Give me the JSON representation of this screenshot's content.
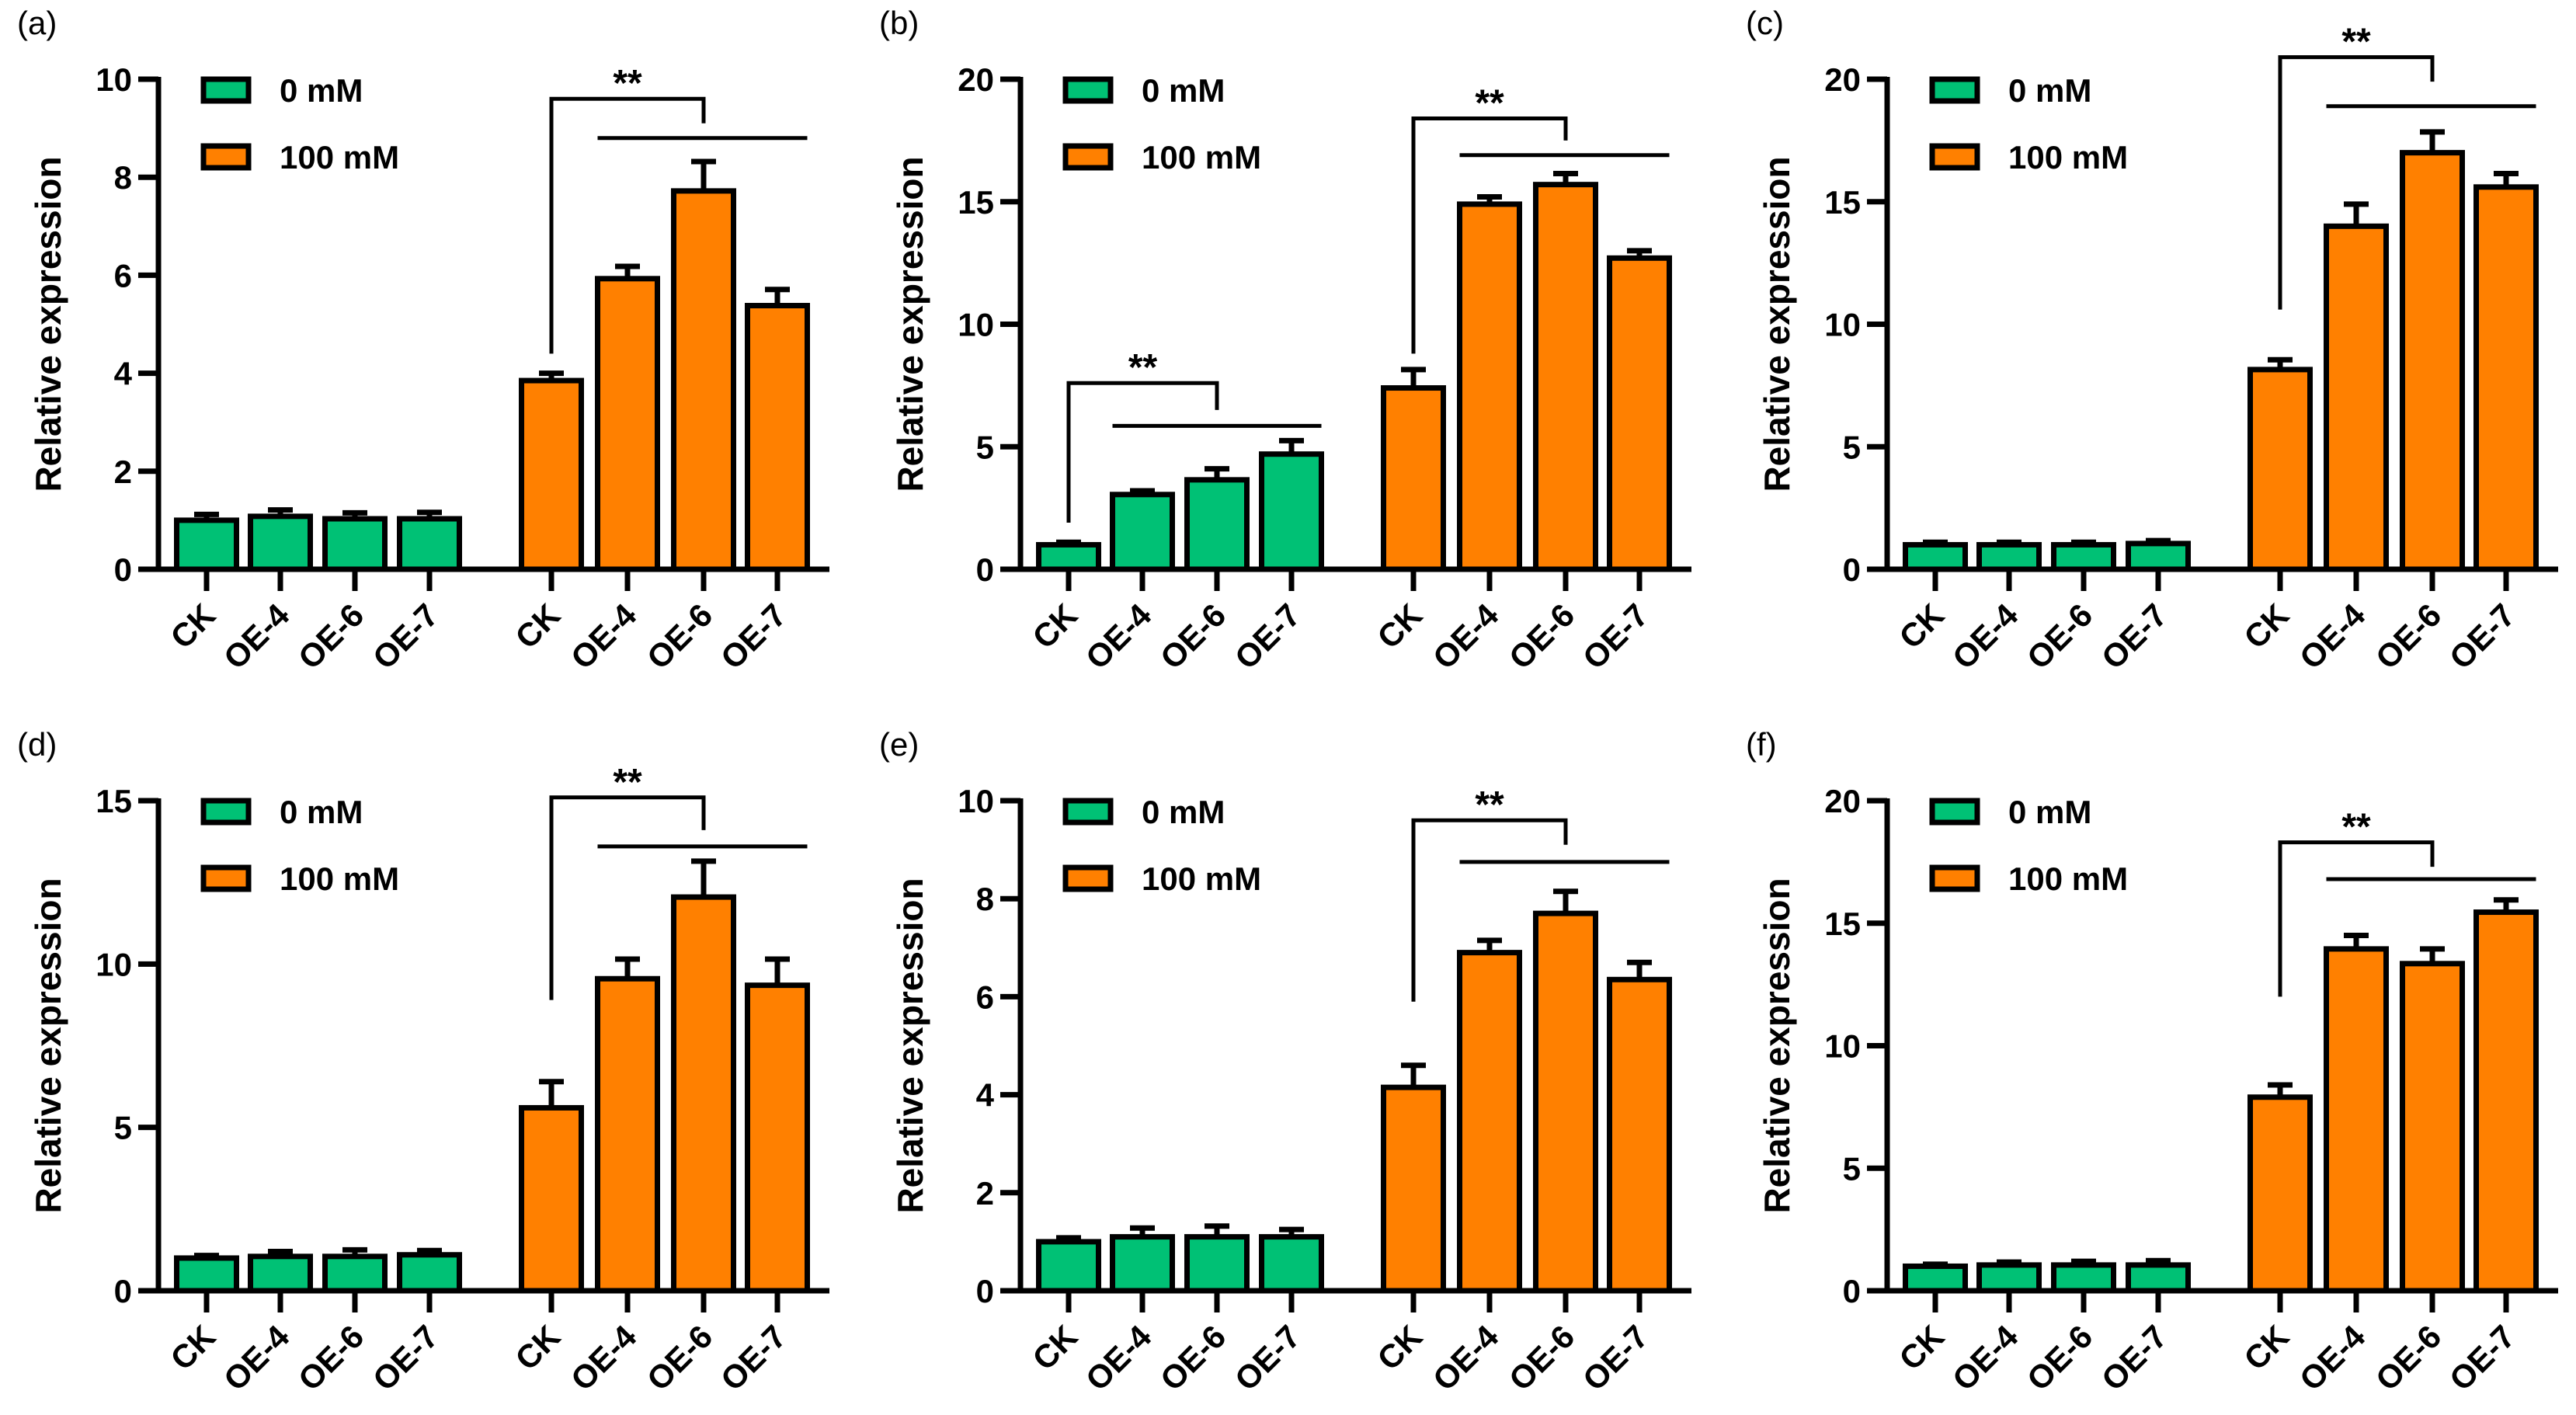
{
  "colors": {
    "0 mM": "#00c175",
    "100 mM": "#ff8000",
    "axis": "#000000"
  },
  "chart_data": [
    {
      "panel": "(a)",
      "type": "bar",
      "ylabel": "Relative expression",
      "ylim": [
        0,
        10
      ],
      "yticks": [
        "0",
        "2",
        "4",
        "6",
        "8",
        "10"
      ],
      "legend": [
        "0 mM",
        "100 mM"
      ],
      "legend_position": "top-left",
      "categories": [
        "CK",
        "OE-4",
        "OE-6",
        "OE-7"
      ],
      "series": [
        {
          "name": "0 mM",
          "values": [
            1.0,
            1.08,
            1.03,
            1.03
          ],
          "errors": [
            0.12,
            0.13,
            0.12,
            0.13
          ]
        },
        {
          "name": "100 mM",
          "values": [
            3.85,
            5.93,
            7.72,
            5.38
          ],
          "errors": [
            0.15,
            0.25,
            0.6,
            0.33
          ]
        }
      ],
      "annotations": [
        {
          "series": 1,
          "text": "**",
          "top": 9.6,
          "left_bottom": 4.4,
          "right_bottom": 9.1,
          "line": 8.8
        }
      ]
    },
    {
      "panel": "(b)",
      "type": "bar",
      "ylabel": "Relative expression",
      "ylim": [
        0,
        20
      ],
      "yticks": [
        "0",
        "5",
        "10",
        "15",
        "20"
      ],
      "legend": [
        "0 mM",
        "100 mM"
      ],
      "legend_position": "top-left",
      "categories": [
        "CK",
        "OE-4",
        "OE-6",
        "OE-7"
      ],
      "series": [
        {
          "name": "0 mM",
          "values": [
            1.0,
            3.05,
            3.65,
            4.7
          ],
          "errors": [
            0.1,
            0.15,
            0.45,
            0.55
          ]
        },
        {
          "name": "100 mM",
          "values": [
            7.4,
            14.9,
            15.7,
            12.7
          ],
          "errors": [
            0.75,
            0.3,
            0.45,
            0.3
          ]
        }
      ],
      "annotations": [
        {
          "series": 0,
          "text": "**",
          "top": 7.6,
          "left_bottom": 1.9,
          "right_bottom": 6.5,
          "line": 5.85
        },
        {
          "series": 1,
          "text": "**",
          "top": 18.4,
          "left_bottom": 8.8,
          "right_bottom": 17.5,
          "line": 16.9
        }
      ]
    },
    {
      "panel": "(c)",
      "type": "bar",
      "ylabel": "Relative expression",
      "ylim": [
        0,
        20
      ],
      "yticks": [
        "0",
        "5",
        "10",
        "15",
        "20"
      ],
      "legend": [
        "0 mM",
        "100 mM"
      ],
      "legend_position": "top-left",
      "categories": [
        "CK",
        "OE-4",
        "OE-6",
        "OE-7"
      ],
      "series": [
        {
          "name": "0 mM",
          "values": [
            1.0,
            1.0,
            1.0,
            1.05
          ],
          "errors": [
            0.1,
            0.1,
            0.1,
            0.12
          ]
        },
        {
          "name": "100 mM",
          "values": [
            8.15,
            14.0,
            17.0,
            15.6
          ],
          "errors": [
            0.4,
            0.9,
            0.85,
            0.55
          ]
        }
      ],
      "annotations": [
        {
          "series": 1,
          "text": "**",
          "top": 20.9,
          "left_bottom": 10.6,
          "right_bottom": 19.9,
          "line": 18.9
        }
      ]
    },
    {
      "panel": "(d)",
      "type": "bar",
      "ylabel": "Relative expression",
      "ylim": [
        0,
        15
      ],
      "yticks": [
        "0",
        "5",
        "10",
        "15"
      ],
      "legend": [
        "0 mM",
        "100 mM"
      ],
      "legend_position": "top-left",
      "categories": [
        "CK",
        "OE-4",
        "OE-6",
        "OE-7"
      ],
      "series": [
        {
          "name": "0 mM",
          "values": [
            1.0,
            1.05,
            1.05,
            1.1
          ],
          "errors": [
            0.08,
            0.15,
            0.2,
            0.13
          ]
        },
        {
          "name": "100 mM",
          "values": [
            5.6,
            9.55,
            12.05,
            9.35
          ],
          "errors": [
            0.8,
            0.6,
            1.1,
            0.8
          ]
        }
      ],
      "annotations": [
        {
          "series": 1,
          "text": "**",
          "top": 15.1,
          "left_bottom": 8.9,
          "right_bottom": 14.1,
          "line": 13.6
        }
      ]
    },
    {
      "panel": "(e)",
      "type": "bar",
      "ylabel": "Relative expression",
      "ylim": [
        0,
        10
      ],
      "yticks": [
        "0",
        "2",
        "4",
        "6",
        "8",
        "10"
      ],
      "legend": [
        "0 mM",
        "100 mM"
      ],
      "legend_position": "top-left",
      "categories": [
        "CK",
        "OE-4",
        "OE-6",
        "OE-7"
      ],
      "series": [
        {
          "name": "0 mM",
          "values": [
            1.0,
            1.1,
            1.1,
            1.1
          ],
          "errors": [
            0.08,
            0.18,
            0.22,
            0.15
          ]
        },
        {
          "name": "100 mM",
          "values": [
            4.15,
            6.9,
            7.7,
            6.35
          ],
          "errors": [
            0.45,
            0.25,
            0.45,
            0.35
          ]
        }
      ],
      "annotations": [
        {
          "series": 1,
          "text": "**",
          "top": 9.6,
          "left_bottom": 5.9,
          "right_bottom": 9.1,
          "line": 8.75
        }
      ]
    },
    {
      "panel": "(f)",
      "type": "bar",
      "ylabel": "Relative expression",
      "ylim": [
        0,
        20
      ],
      "yticks": [
        "0",
        "5",
        "10",
        "15",
        "20"
      ],
      "legend": [
        "0 mM",
        "100 mM"
      ],
      "legend_position": "top-left",
      "categories": [
        "CK",
        "OE-4",
        "OE-6",
        "OE-7"
      ],
      "series": [
        {
          "name": "0 mM",
          "values": [
            1.0,
            1.05,
            1.05,
            1.05
          ],
          "errors": [
            0.08,
            0.12,
            0.15,
            0.18
          ]
        },
        {
          "name": "100 mM",
          "values": [
            7.9,
            13.95,
            13.35,
            15.45
          ],
          "errors": [
            0.5,
            0.55,
            0.6,
            0.5
          ]
        }
      ],
      "annotations": [
        {
          "series": 1,
          "text": "**",
          "top": 18.3,
          "left_bottom": 12.0,
          "right_bottom": 17.3,
          "line": 16.8
        }
      ]
    }
  ]
}
